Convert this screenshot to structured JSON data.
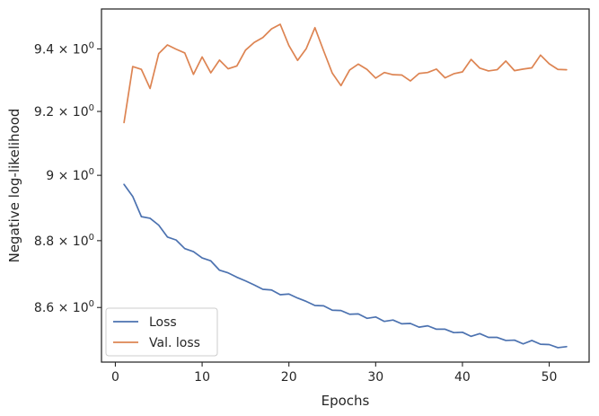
{
  "chart_data": {
    "type": "line",
    "title": "",
    "xlabel": "Epochs",
    "ylabel": "Negative log-likelihood",
    "xlim": [
      -1.6,
      54.6
    ],
    "ylim": [
      8.44,
      9.53
    ],
    "y_scale": "log",
    "grid": false,
    "legend_position": "lower-left",
    "x_ticks": [
      0,
      10,
      20,
      30,
      40,
      50
    ],
    "x_tick_labels": [
      "0",
      "10",
      "20",
      "30",
      "40",
      "50"
    ],
    "y_ticks": [
      8.6,
      8.8,
      9.0,
      9.2,
      9.4
    ],
    "y_tick_labels": [
      {
        "base": "8.6",
        "sep": "×",
        "mant": "10",
        "exp": "0"
      },
      {
        "base": "8.8",
        "sep": "×",
        "mant": "10",
        "exp": "0"
      },
      {
        "base": "9",
        "sep": "×",
        "mant": "10",
        "exp": "0"
      },
      {
        "base": "9.2",
        "sep": "×",
        "mant": "10",
        "exp": "0"
      },
      {
        "base": "9.4",
        "sep": "×",
        "mant": "10",
        "exp": "0"
      }
    ],
    "x": [
      1,
      2,
      3,
      4,
      5,
      6,
      7,
      8,
      9,
      10,
      11,
      12,
      13,
      14,
      15,
      16,
      17,
      18,
      19,
      20,
      21,
      22,
      23,
      24,
      25,
      26,
      27,
      28,
      29,
      30,
      31,
      32,
      33,
      34,
      35,
      36,
      37,
      38,
      39,
      40,
      41,
      42,
      43,
      44,
      45,
      46,
      47,
      48,
      49,
      50,
      51,
      52
    ],
    "series": [
      {
        "name": "Loss",
        "color": "#4c72b0",
        "values": [
          8.972,
          8.935,
          8.873,
          8.868,
          8.847,
          8.811,
          8.802,
          8.776,
          8.767,
          8.748,
          8.739,
          8.711,
          8.703,
          8.69,
          8.679,
          8.667,
          8.654,
          8.652,
          8.638,
          8.64,
          8.628,
          8.618,
          8.606,
          8.605,
          8.592,
          8.591,
          8.58,
          8.581,
          8.568,
          8.572,
          8.559,
          8.563,
          8.552,
          8.553,
          8.542,
          8.546,
          8.536,
          8.536,
          8.526,
          8.527,
          8.515,
          8.523,
          8.512,
          8.512,
          8.503,
          8.504,
          8.493,
          8.503,
          8.492,
          8.491,
          8.482,
          8.485
        ]
      },
      {
        "name": "Val. loss",
        "color": "#dd8452",
        "values": [
          9.165,
          9.343,
          9.334,
          9.273,
          9.385,
          9.413,
          9.399,
          9.387,
          9.318,
          9.374,
          9.323,
          9.364,
          9.336,
          9.345,
          9.396,
          9.421,
          9.437,
          9.465,
          9.48,
          9.411,
          9.363,
          9.401,
          9.469,
          9.394,
          9.322,
          9.282,
          9.332,
          9.351,
          9.334,
          9.306,
          9.324,
          9.317,
          9.316,
          9.297,
          9.321,
          9.324,
          9.335,
          9.307,
          9.32,
          9.326,
          9.366,
          9.338,
          9.329,
          9.333,
          9.361,
          9.33,
          9.335,
          9.339,
          9.38,
          9.352,
          9.334,
          9.333
        ]
      }
    ]
  }
}
